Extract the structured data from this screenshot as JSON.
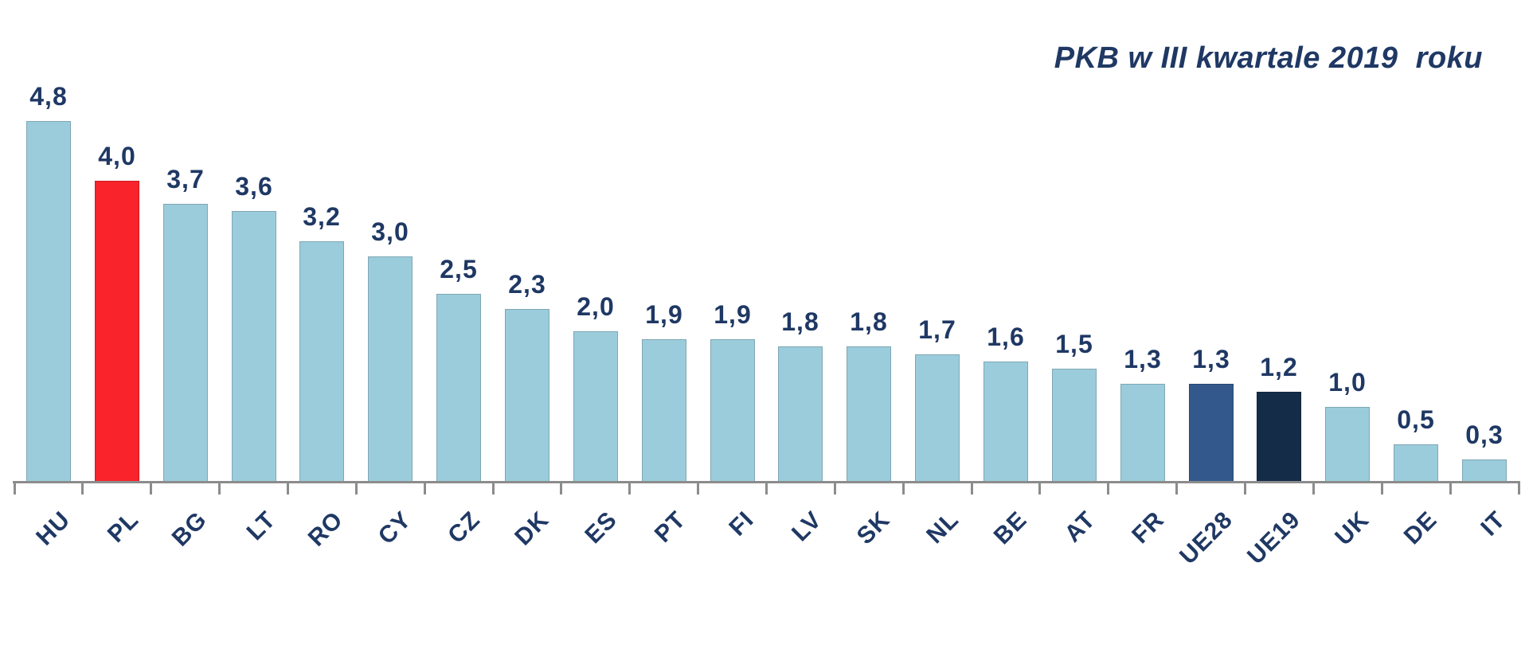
{
  "title": "PKB w III kwartale 2019  roku",
  "chart_data": {
    "type": "bar",
    "title": "PKB w III kwartale 2019  roku",
    "xlabel": "",
    "ylabel": "",
    "ylim": [
      0,
      5
    ],
    "grid": false,
    "legend": false,
    "value_label_format": "comma-decimal",
    "categories": [
      "HU",
      "PL",
      "BG",
      "LT",
      "RO",
      "CY",
      "CZ",
      "DK",
      "ES",
      "PT",
      "FI",
      "LV",
      "SK",
      "NL",
      "BE",
      "AT",
      "FR",
      "UE28",
      "UE19",
      "UK",
      "DE",
      "IT"
    ],
    "values": [
      4.8,
      4.0,
      3.7,
      3.6,
      3.2,
      3.0,
      2.5,
      2.3,
      2.0,
      1.9,
      1.9,
      1.8,
      1.8,
      1.7,
      1.6,
      1.5,
      1.3,
      1.3,
      1.2,
      1.0,
      0.5,
      0.3
    ],
    "value_labels": [
      "4,8",
      "4,0",
      "3,7",
      "3,6",
      "3,2",
      "3,0",
      "2,5",
      "2,3",
      "2,0",
      "1,9",
      "1,9",
      "1,8",
      "1,8",
      "1,7",
      "1,6",
      "1,5",
      "1,3",
      "1,3",
      "1,2",
      "1,0",
      "0,5",
      "0,3"
    ],
    "bar_colors": [
      "#9BCCDB",
      "#F8232B",
      "#9BCCDB",
      "#9BCCDB",
      "#9BCCDB",
      "#9BCCDB",
      "#9BCCDB",
      "#9BCCDB",
      "#9BCCDB",
      "#9BCCDB",
      "#9BCCDB",
      "#9BCCDB",
      "#9BCCDB",
      "#9BCCDB",
      "#9BCCDB",
      "#9BCCDB",
      "#9BCCDB",
      "#33598C",
      "#152C49",
      "#9BCCDB",
      "#9BCCDB",
      "#9BCCDB"
    ],
    "colors": {
      "default_bar": "#9BCCDB",
      "highlight_poland": "#F8232B",
      "ue28_bar": "#33598C",
      "ue19_bar": "#152C49",
      "text": "#1F3864",
      "axis": "#8C8C8C"
    }
  }
}
